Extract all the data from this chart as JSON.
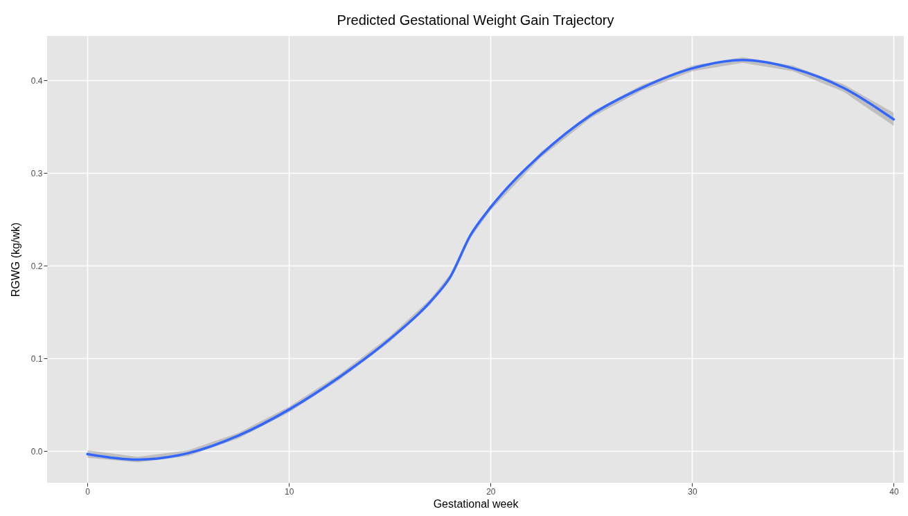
{
  "chart_data": {
    "type": "line",
    "title": "Predicted Gestational Weight Gain Trajectory",
    "xlabel": "Gestational week",
    "ylabel": "RGWG (kg/wk)",
    "xlim": [
      -2,
      40.5
    ],
    "ylim": [
      -0.034,
      0.448
    ],
    "xticks": [
      0,
      10,
      20,
      30,
      40
    ],
    "yticks": [
      {
        "value": 0,
        "label": "0.0"
      },
      0.1,
      0.2,
      0.3,
      0.4
    ],
    "grid": true,
    "legend": false,
    "line_style": "solid",
    "series": [
      {
        "color": "#3366ff",
        "x": [
          0,
          2.5,
          5,
          7.5,
          10,
          12.5,
          15,
          17,
          18,
          19,
          20,
          22.5,
          25,
          27.5,
          30,
          32.5,
          35,
          37.5,
          40
        ],
        "values": [
          -0.003,
          -0.009,
          -0.002,
          0.017,
          0.045,
          0.08,
          0.121,
          0.161,
          0.188,
          0.233,
          0.263,
          0.32,
          0.363,
          0.392,
          0.413,
          0.422,
          0.413,
          0.392,
          0.358
        ],
        "lower": [
          -0.007,
          -0.012,
          -0.005,
          0.014,
          0.042,
          0.077,
          0.118,
          0.158,
          0.185,
          0.23,
          0.26,
          0.317,
          0.36,
          0.389,
          0.41,
          0.419,
          0.41,
          0.388,
          0.351
        ],
        "upper": [
          0.001,
          -0.006,
          0.001,
          0.02,
          0.048,
          0.083,
          0.124,
          0.164,
          0.191,
          0.236,
          0.266,
          0.323,
          0.366,
          0.395,
          0.416,
          0.425,
          0.416,
          0.396,
          0.365
        ]
      }
    ]
  }
}
